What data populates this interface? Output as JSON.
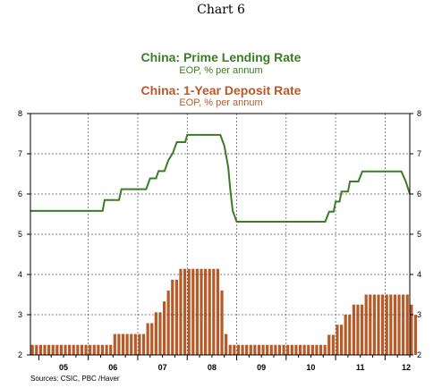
{
  "header": {
    "title": "Chart 6"
  },
  "legend": [
    {
      "title": "China: Prime Lending Rate",
      "subtitle": "EOP, % per annum",
      "color": "#3a7d23"
    },
    {
      "title": "China: 1-Year Deposit Rate",
      "subtitle": "EOP, % per annum",
      "color": "#b85a28"
    }
  ],
  "source": "Sources: CSIC, PBC /Haver",
  "chart_data": {
    "type": "bar",
    "grid": true,
    "ylim": [
      2,
      8
    ],
    "yticks": [
      2,
      3,
      4,
      5,
      6,
      7,
      8
    ],
    "xlim": [
      2004.83,
      2012.5
    ],
    "xlabels": [
      {
        "label": "05",
        "x": 2005.5
      },
      {
        "label": "06",
        "x": 2006.5
      },
      {
        "label": "07",
        "x": 2007.5
      },
      {
        "label": "08",
        "x": 2008.5
      },
      {
        "label": "09",
        "x": 2009.5
      },
      {
        "label": "10",
        "x": 2010.5
      },
      {
        "label": "11",
        "x": 2011.5
      },
      {
        "label": "12",
        "x": 2012.5
      }
    ],
    "series": [
      {
        "name": "China: Prime Lending Rate",
        "type": "line",
        "points": [
          [
            2004.83,
            5.58
          ],
          [
            2006.29,
            5.58
          ],
          [
            2006.33,
            5.85
          ],
          [
            2006.62,
            5.85
          ],
          [
            2006.67,
            6.12
          ],
          [
            2007.17,
            6.12
          ],
          [
            2007.25,
            6.39
          ],
          [
            2007.37,
            6.39
          ],
          [
            2007.42,
            6.57
          ],
          [
            2007.54,
            6.57
          ],
          [
            2007.62,
            6.84
          ],
          [
            2007.71,
            7.02
          ],
          [
            2007.79,
            7.29
          ],
          [
            2007.96,
            7.29
          ],
          [
            2008.0,
            7.47
          ],
          [
            2008.67,
            7.47
          ],
          [
            2008.75,
            7.2
          ],
          [
            2008.79,
            6.93
          ],
          [
            2008.83,
            6.66
          ],
          [
            2008.87,
            6.12
          ],
          [
            2008.92,
            5.58
          ],
          [
            2009.0,
            5.31
          ],
          [
            2010.79,
            5.31
          ],
          [
            2010.87,
            5.56
          ],
          [
            2010.96,
            5.56
          ],
          [
            2011.0,
            5.81
          ],
          [
            2011.08,
            5.81
          ],
          [
            2011.12,
            6.06
          ],
          [
            2011.25,
            6.06
          ],
          [
            2011.29,
            6.31
          ],
          [
            2011.46,
            6.31
          ],
          [
            2011.54,
            6.56
          ],
          [
            2012.33,
            6.56
          ],
          [
            2012.42,
            6.31
          ],
          [
            2012.5,
            6.0
          ]
        ]
      },
      {
        "name": "China: 1-Year Deposit Rate",
        "type": "bar",
        "start": 2004.83,
        "step": 0.0833,
        "values": [
          2.25,
          2.25,
          2.25,
          2.25,
          2.25,
          2.25,
          2.25,
          2.25,
          2.25,
          2.25,
          2.25,
          2.25,
          2.25,
          2.25,
          2.25,
          2.25,
          2.25,
          2.25,
          2.25,
          2.25,
          2.52,
          2.52,
          2.52,
          2.52,
          2.52,
          2.52,
          2.52,
          2.52,
          2.79,
          2.79,
          3.06,
          3.06,
          3.33,
          3.6,
          3.87,
          3.87,
          4.14,
          4.14,
          4.14,
          4.14,
          4.14,
          4.14,
          4.14,
          4.14,
          4.14,
          4.14,
          3.6,
          2.52,
          2.25,
          2.25,
          2.25,
          2.25,
          2.25,
          2.25,
          2.25,
          2.25,
          2.25,
          2.25,
          2.25,
          2.25,
          2.25,
          2.25,
          2.25,
          2.25,
          2.25,
          2.25,
          2.25,
          2.25,
          2.25,
          2.25,
          2.25,
          2.25,
          2.5,
          2.5,
          2.75,
          2.75,
          3.0,
          3.0,
          3.25,
          3.25,
          3.25,
          3.5,
          3.5,
          3.5,
          3.5,
          3.5,
          3.5,
          3.5,
          3.5,
          3.5,
          3.5,
          3.5,
          3.25,
          3.0
        ]
      }
    ]
  }
}
